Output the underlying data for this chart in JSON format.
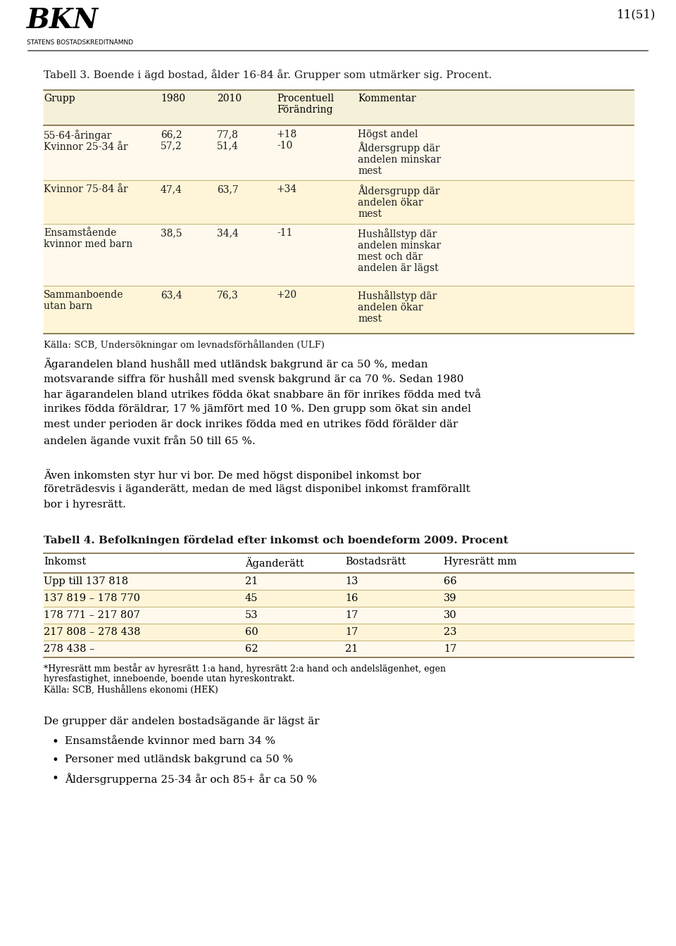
{
  "page_number": "11(51)",
  "table3_title": "Tabell 3. Boende i ägd bostad, ålder 16-84 år. Grupper som utmärker sig. Procent.",
  "table3_headers": [
    "Grupp",
    "1980",
    "2010",
    "Procentuell\nFörändring",
    "Kommentar"
  ],
  "table3_rows": [
    {
      "group": "55-64-åringar\nKvinnor 25-34 år",
      "val1980": "66,2\n57,2",
      "val2010": "77,8\n51,4",
      "change": "+18\n-10",
      "comment": "Högst andel\nÅldersgrupp där\nandelen minskar\nmest",
      "bg": "#fef9ec"
    },
    {
      "group": "Kvinnor 75-84 år",
      "val1980": "47,4",
      "val2010": "63,7",
      "change": "+34",
      "comment": "Åldersgrupp där\nandelen ökar\nmest",
      "bg": "#fef5d8"
    },
    {
      "group": "Ensamstående\nkvinnor med barn",
      "val1980": "38,5",
      "val2010": "34,4",
      "change": "-11",
      "comment": "Hushållstyp där\nandelen minskar\nmest och där\nandelen är lägst",
      "bg": "#fef9ec"
    },
    {
      "group": "Sammanboende\nutan barn",
      "val1980": "63,4",
      "val2010": "76,3",
      "change": "+20",
      "comment": "Hushållstyp där\nandelen ökar\nmest",
      "bg": "#fef5d8"
    }
  ],
  "table3_source": "Källa: SCB, Undersökningar om levnadsförhållanden (ULF)",
  "para1_lines": [
    "Ägarandelen bland hushåll med utländsk bakgrund är ca 50 %, medan",
    "motsvarande siffra för hushåll med svensk bakgrund är ca 70 %. Sedan 1980",
    "har ägarandelen bland utrikes födda ökat snabbare än för inrikes födda med två",
    "inrikes födda föräldrar, 17 % jämfört med 10 %. Den grupp som ökat sin andel",
    "mest under perioden är dock inrikes födda med en utrikes född förälder där",
    "andelen ägande vuxit från 50 till 65 %."
  ],
  "para2_lines": [
    "Även inkomsten styr hur vi bor. De med högst disponibel inkomst bor",
    "företrädesvis i äganderätt, medan de med lägst disponibel inkomst framförallt",
    "bor i hyresrätt."
  ],
  "table4_title": "Tabell 4. Befolkningen fördelad efter inkomst och boendeform 2009. Procent",
  "table4_headers": [
    "Inkomst",
    "Äganderätt",
    "Bostadsrätt",
    "Hyresrätt mm"
  ],
  "table4_rows": [
    {
      "income": "Upp till 137 818",
      "ag": "21",
      "bo": "13",
      "hy": "66",
      "bg": "#fef9ec"
    },
    {
      "income": "137 819 – 178 770",
      "ag": "45",
      "bo": "16",
      "hy": "39",
      "bg": "#fef5d8"
    },
    {
      "income": "178 771 – 217 807",
      "ag": "53",
      "bo": "17",
      "hy": "30",
      "bg": "#fef9ec"
    },
    {
      "income": "217 808 – 278 438",
      "ag": "60",
      "bo": "17",
      "hy": "23",
      "bg": "#fef5d8"
    },
    {
      "income": "278 438 –",
      "ag": "62",
      "bo": "21",
      "hy": "17",
      "bg": "#fef9ec"
    }
  ],
  "table4_footnote_lines": [
    "*Hyresrätt mm består av hyresrätt 1:a hand, hyresrätt 2:a hand och andelslägenhet, egen",
    "hyresfastighet, inneboende, boende utan hyreskontrakt.",
    "Källa: SCB, Hushållens ekonomi (HEK)"
  ],
  "paragraph3_title": "De grupper där andelen bostadsägande är lägst är",
  "bullet_points": [
    "Ensamstående kvinnor med barn 34 %",
    "Personer med utländsk bakgrund ca 50 %",
    "Åldersgrupperna 25-34 år och 85+ år ca 50 %"
  ],
  "header_bg": "#f5f0d8",
  "row_bg1": "#fef9ec",
  "row_bg2": "#fef5d8",
  "line_color": "#c8b878",
  "dark_line_color": "#7a6a40",
  "text_color": "#1a1a1a"
}
